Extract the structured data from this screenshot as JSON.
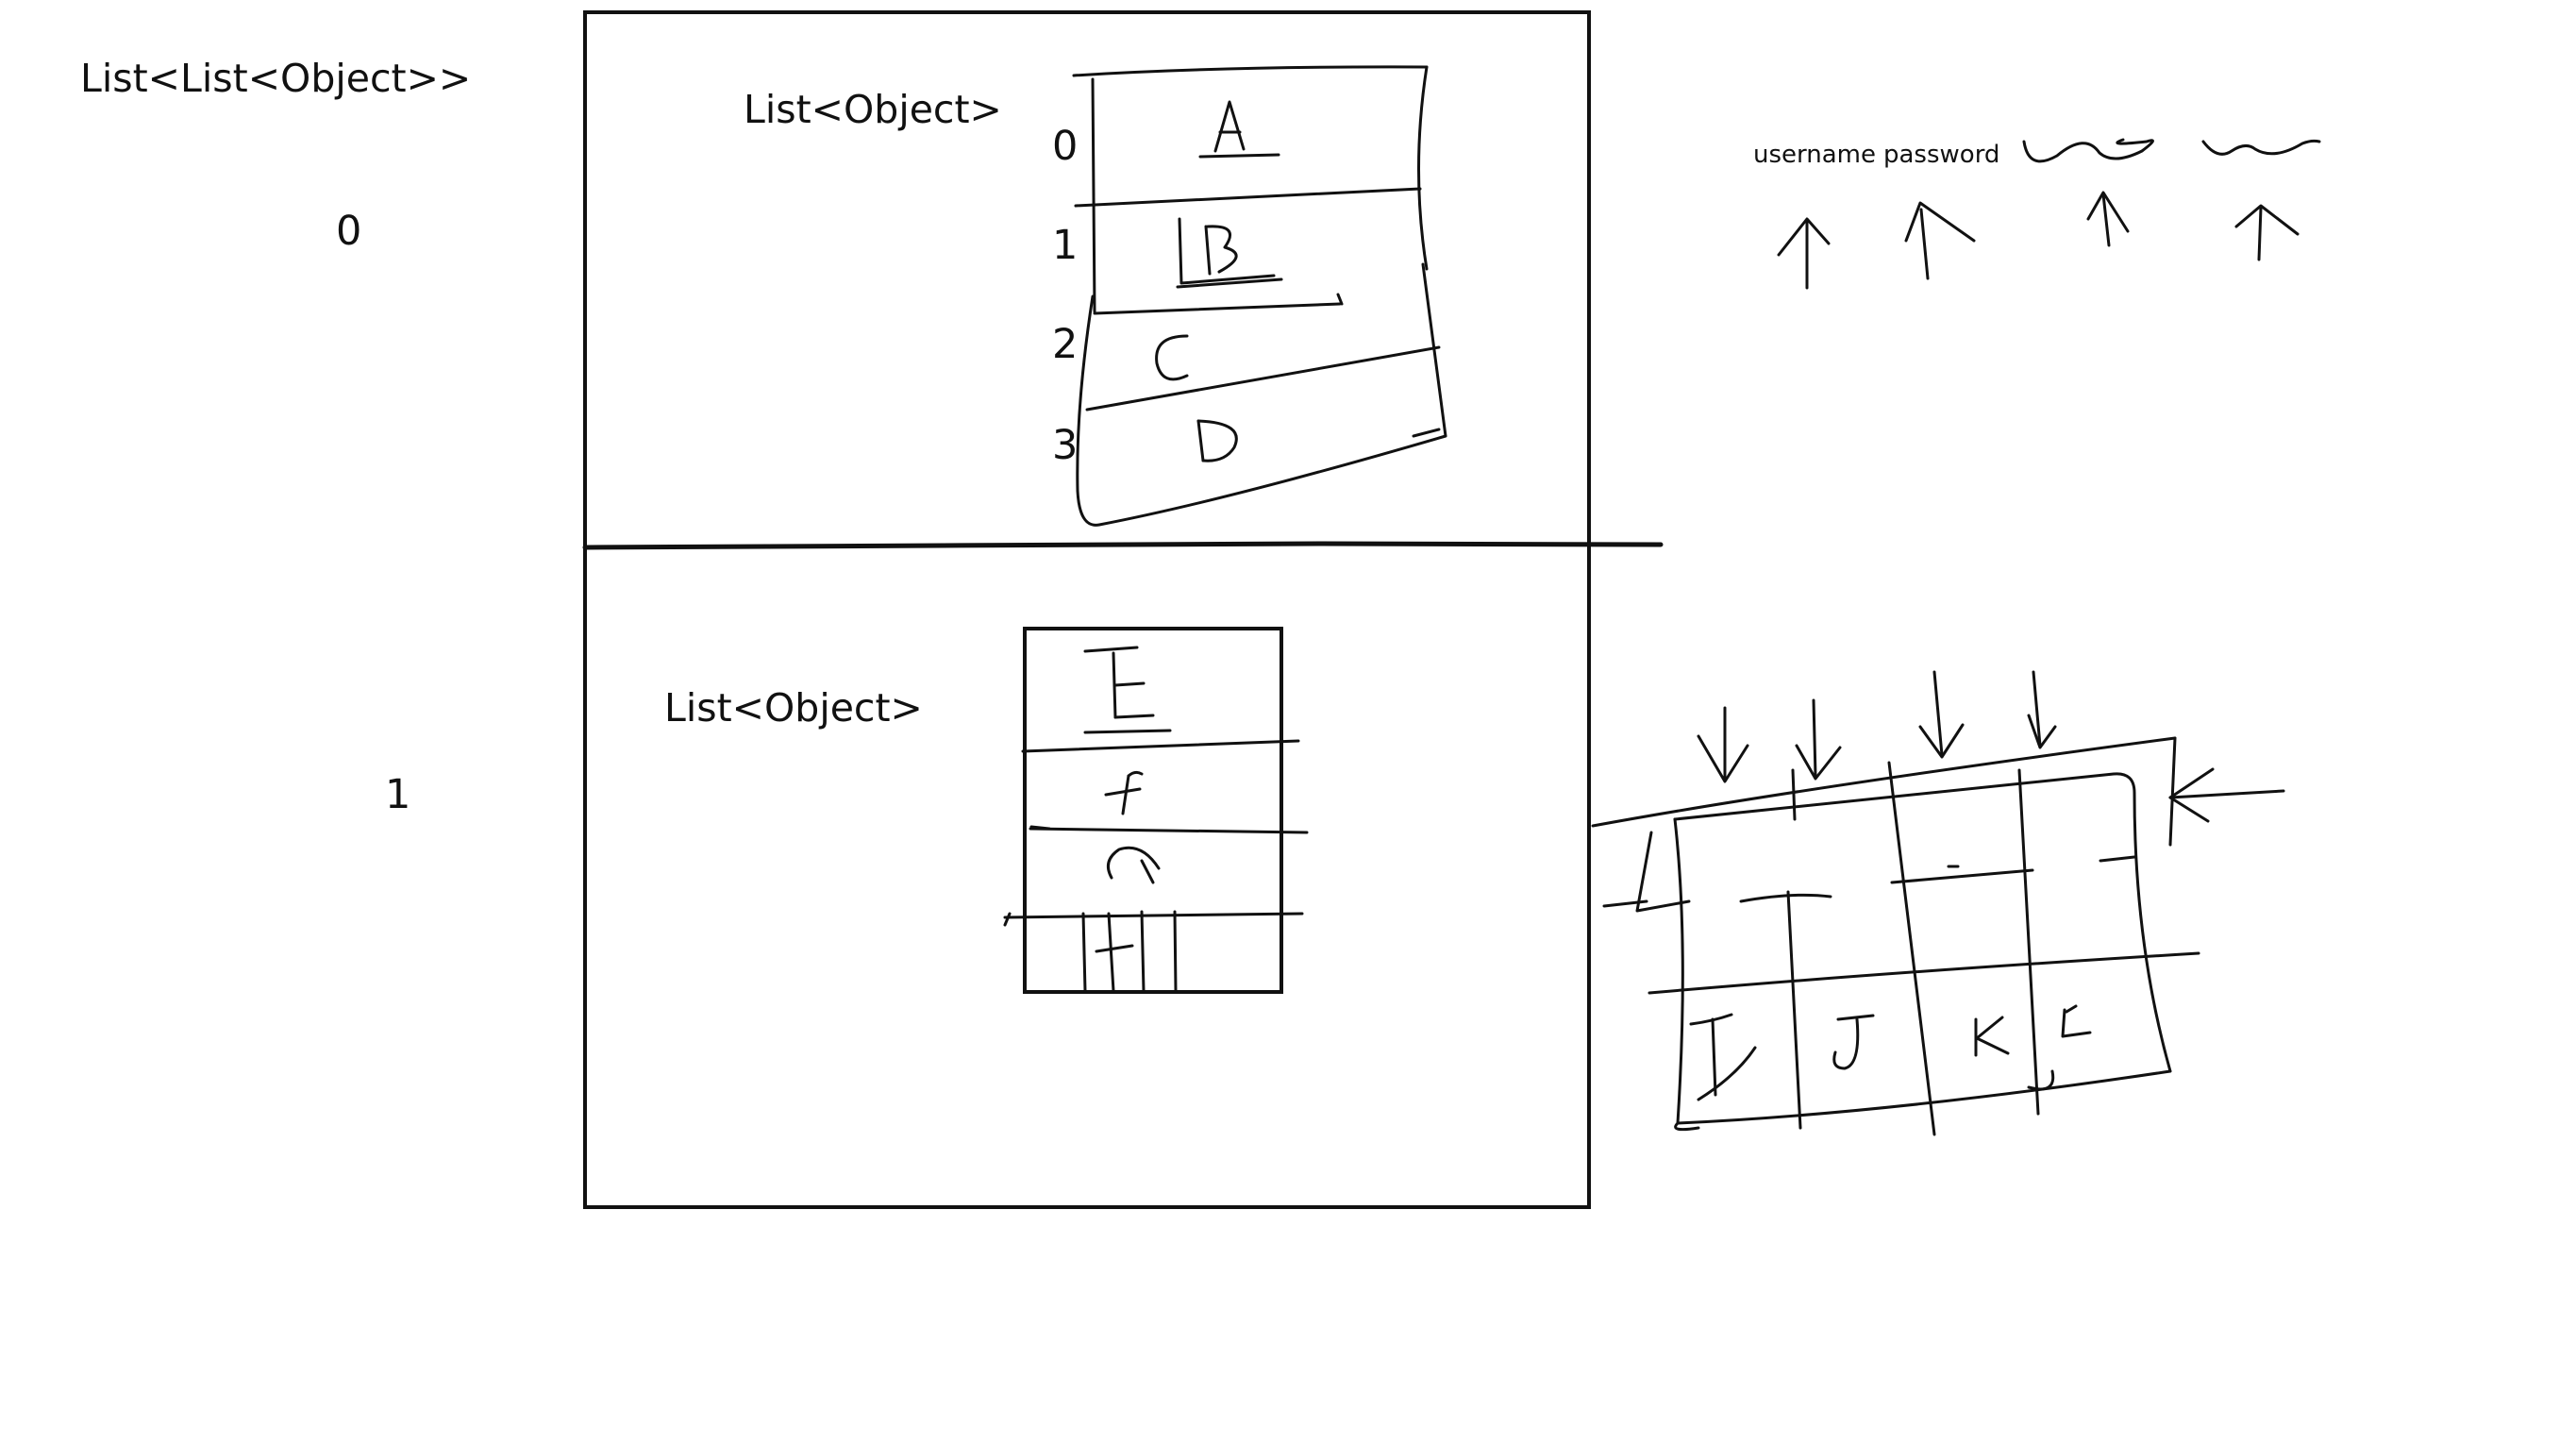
{
  "outer": {
    "label": "List<List<Object>>",
    "indices": [
      "0",
      "1"
    ]
  },
  "inner_top": {
    "label": "List<Object>",
    "indices": [
      "0",
      "1",
      "2",
      "3"
    ],
    "items": [
      "A",
      "B",
      "C",
      "D"
    ]
  },
  "inner_bottom": {
    "label": "List<Object>",
    "items": [
      "E",
      "F",
      "G",
      "H"
    ]
  },
  "columns_sketch": {
    "headers": [
      "username",
      "password"
    ]
  },
  "grid_sketch": {
    "cells": [
      "I",
      "J",
      "K",
      "L"
    ]
  }
}
